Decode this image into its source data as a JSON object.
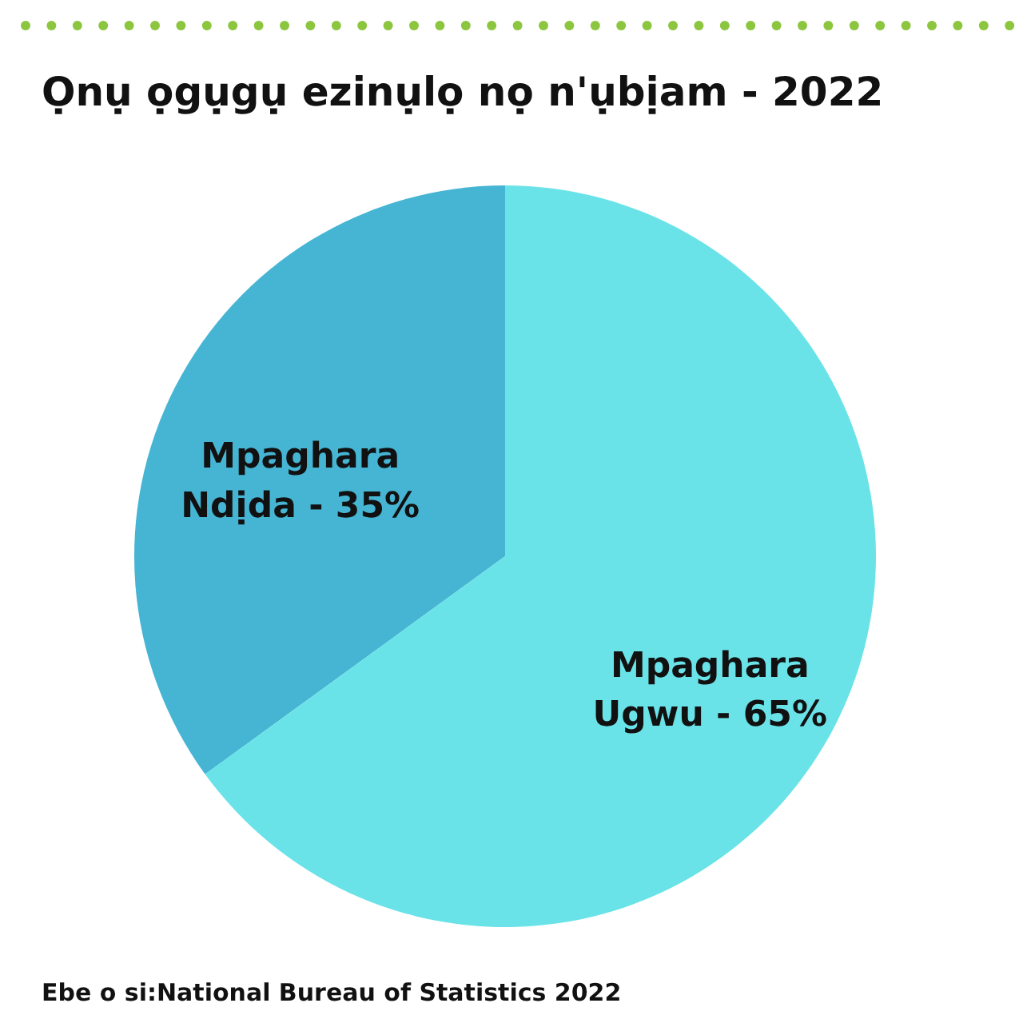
{
  "chart_data": {
    "type": "pie",
    "title": "Ọnụ ọgụgụ ezinụlọ nọ n'ụbịam - 2022",
    "categories": [
      "Mpaghara Ndịda",
      "Mpaghara Ugwu"
    ],
    "values": [
      35,
      65
    ],
    "value_labels": [
      "35%",
      "65%"
    ],
    "colors": [
      "#45b5d3",
      "#6ae3e8"
    ],
    "annotations": [
      "Ebe o si:National Bureau of Statistics 2022"
    ],
    "legend": false
  }
}
